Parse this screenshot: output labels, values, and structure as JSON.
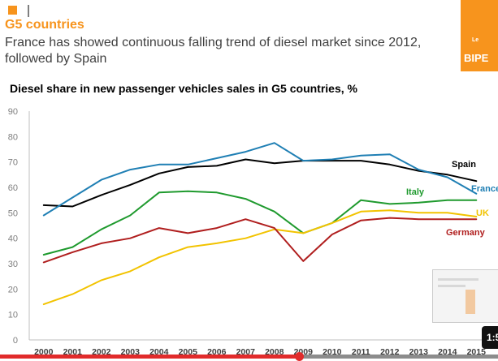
{
  "slide": {
    "section_title": "G5 countries",
    "headline": "France has showed continuous falling trend of diesel market since 2012,\nfollowed by Spain",
    "logo": {
      "small": "Le",
      "name": "BIPE"
    },
    "orange": "#f7941d"
  },
  "chart_data": {
    "type": "line",
    "title": "Diesel share in new passenger vehicles sales in G5 countries, %",
    "xlabel": "",
    "ylabel": "",
    "categories": [
      "2000",
      "2001",
      "2002",
      "2003",
      "2004",
      "2005",
      "2006",
      "2007",
      "2008",
      "2009",
      "2010",
      "2011",
      "2012",
      "2013",
      "2014",
      "2015"
    ],
    "ylim": [
      0,
      90
    ],
    "yticks": [
      0,
      10,
      20,
      30,
      40,
      50,
      60,
      70,
      80,
      90
    ],
    "grid": false,
    "series": [
      {
        "name": "Spain",
        "color": "#000000",
        "values": [
          53,
          52.5,
          57,
          61,
          65.5,
          68,
          68.5,
          71,
          69.5,
          70.5,
          70.5,
          70.5,
          69,
          66.5,
          65,
          62.5
        ]
      },
      {
        "name": "France",
        "color": "#1f7fb4",
        "values": [
          49,
          56,
          63,
          67,
          69,
          69,
          71.5,
          74,
          77.5,
          70.5,
          71,
          72.5,
          73,
          67,
          64,
          57.5
        ]
      },
      {
        "name": "Italy",
        "color": "#1f9a2e",
        "values": [
          33.5,
          36.5,
          43.5,
          49,
          58,
          58.5,
          58,
          55.5,
          50.5,
          42,
          46,
          55,
          53.5,
          54,
          55,
          55
        ]
      },
      {
        "name": "UK",
        "color": "#f2c300",
        "values": [
          14,
          18,
          23.5,
          27,
          32.5,
          36.5,
          38,
          40,
          43.5,
          42,
          46,
          50.5,
          51,
          50,
          50,
          48.5
        ]
      },
      {
        "name": "Germany",
        "color": "#b01e1e",
        "values": [
          30.5,
          34.5,
          38,
          40,
          44,
          42,
          44,
          47.5,
          44,
          31,
          41.5,
          47,
          48,
          47.5,
          47.5,
          47.5
        ]
      }
    ]
  },
  "video": {
    "time": "1:5",
    "progress": 0.6
  }
}
